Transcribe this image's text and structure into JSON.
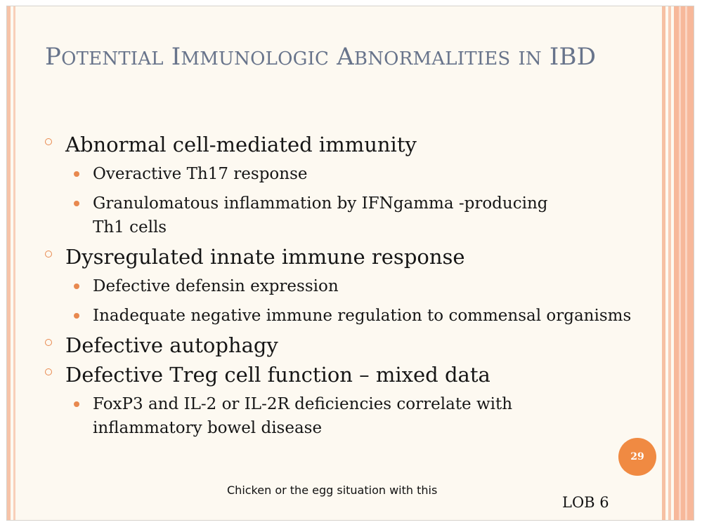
{
  "slide": {
    "title": {
      "w1_cap": "P",
      "w1_rest": "OTENTIAL",
      "w2_cap": "I",
      "w2_rest": "MMUNOLOGIC",
      "w3_cap": "A",
      "w3_rest": "BNORMALITIES",
      "w4_rest": "IN",
      "w5_cap": "IBD"
    },
    "bullets": [
      {
        "text": "Abnormal cell-mediated immunity",
        "sub": [
          "Overactive Th17 response",
          "Granulomatous inflammation by IFNgamma -producing Th1 cells"
        ]
      },
      {
        "text": "Dysregulated innate immune response",
        "sub": [
          "Defective defensin expression",
          "Inadequate negative immune regulation to commensal organisms"
        ]
      },
      {
        "text": "Defective autophagy",
        "sub": []
      },
      {
        "text": "Defective Treg cell function – mixed data",
        "sub": [
          "FoxP3 and IL-2 or IL-2R deficiencies correlate with inflammatory bowel disease"
        ]
      }
    ],
    "page_number": "29",
    "note": "Chicken or the egg situation with this",
    "footer": "LOB 6"
  },
  "colors": {
    "accent": "#f08a42",
    "title": "#68748b",
    "background": "#fdf9f1"
  }
}
